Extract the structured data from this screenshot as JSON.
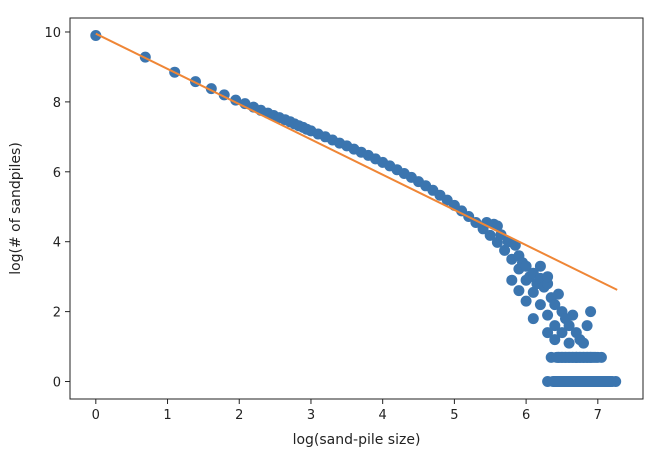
{
  "chart_data": {
    "type": "scatter",
    "title": "",
    "xlabel": "log(sand-pile size)",
    "ylabel": "log(# of sandpiles)",
    "xlim": [
      -0.36,
      7.63
    ],
    "ylim": [
      -0.5,
      10.4
    ],
    "xticks": [
      0,
      1,
      2,
      3,
      4,
      5,
      6,
      7
    ],
    "yticks": [
      0,
      2,
      4,
      6,
      8,
      10
    ],
    "grid": false,
    "legend": "none",
    "colors": {
      "scatter": "#3b75af",
      "fit": "#ef8636"
    },
    "series": [
      {
        "kind": "scatter",
        "points": [
          [
            0,
            9.9
          ],
          [
            0.69,
            9.28
          ],
          [
            1.1,
            8.85
          ],
          [
            1.39,
            8.58
          ],
          [
            1.61,
            8.38
          ],
          [
            1.79,
            8.2
          ],
          [
            1.95,
            8.05
          ],
          [
            2.08,
            7.95
          ],
          [
            2.2,
            7.85
          ],
          [
            2.3,
            7.76
          ],
          [
            2.4,
            7.68
          ],
          [
            2.48,
            7.61
          ],
          [
            2.56,
            7.55
          ],
          [
            2.64,
            7.49
          ],
          [
            2.71,
            7.43
          ],
          [
            2.77,
            7.37
          ],
          [
            2.83,
            7.32
          ],
          [
            2.89,
            7.27
          ],
          [
            2.94,
            7.22
          ],
          [
            3.0,
            7.17
          ],
          [
            3.1,
            7.08
          ],
          [
            3.2,
            7.0
          ],
          [
            3.3,
            6.91
          ],
          [
            3.4,
            6.82
          ],
          [
            3.5,
            6.74
          ],
          [
            3.6,
            6.65
          ],
          [
            3.7,
            6.56
          ],
          [
            3.8,
            6.47
          ],
          [
            3.9,
            6.37
          ],
          [
            4.0,
            6.27
          ],
          [
            4.1,
            6.17
          ],
          [
            4.2,
            6.06
          ],
          [
            4.3,
            5.95
          ],
          [
            4.4,
            5.84
          ],
          [
            4.5,
            5.72
          ],
          [
            4.6,
            5.6
          ],
          [
            4.7,
            5.47
          ],
          [
            4.8,
            5.33
          ],
          [
            4.9,
            5.19
          ],
          [
            5.0,
            5.04
          ],
          [
            5.1,
            4.88
          ],
          [
            5.2,
            4.72
          ],
          [
            5.3,
            4.55
          ],
          [
            5.4,
            4.37
          ],
          [
            5.5,
            4.18
          ],
          [
            5.6,
            3.98
          ],
          [
            5.7,
            3.75
          ],
          [
            5.8,
            3.5
          ],
          [
            5.9,
            3.22
          ],
          [
            6.0,
            2.9
          ],
          [
            6.1,
            2.55
          ],
          [
            6.2,
            2.2
          ],
          [
            6.3,
            1.9
          ],
          [
            6.4,
            1.6
          ],
          [
            6.5,
            1.4
          ],
          [
            6.6,
            1.1
          ],
          [
            6.7,
            0.69
          ],
          [
            5.45,
            4.55
          ],
          [
            5.55,
            4.5
          ],
          [
            5.6,
            4.45
          ],
          [
            5.65,
            4.2
          ],
          [
            5.75,
            4.0
          ],
          [
            5.85,
            3.9
          ],
          [
            5.9,
            3.6
          ],
          [
            5.95,
            3.4
          ],
          [
            6.0,
            3.3
          ],
          [
            6.05,
            3.0
          ],
          [
            6.1,
            3.1
          ],
          [
            6.15,
            2.8
          ],
          [
            6.2,
            2.95
          ],
          [
            6.25,
            2.7
          ],
          [
            6.3,
            2.8
          ],
          [
            6.35,
            2.4
          ],
          [
            6.4,
            2.2
          ],
          [
            6.45,
            2.5
          ],
          [
            6.5,
            2.0
          ],
          [
            6.55,
            1.8
          ],
          [
            6.6,
            1.6
          ],
          [
            6.65,
            1.9
          ],
          [
            6.7,
            1.4
          ],
          [
            6.75,
            1.2
          ],
          [
            6.8,
            1.1
          ],
          [
            6.9,
            2.0
          ],
          [
            6.85,
            1.6
          ],
          [
            6.3,
            3.0
          ],
          [
            6.2,
            3.3
          ],
          [
            6.0,
            2.3
          ],
          [
            5.9,
            2.6
          ],
          [
            5.8,
            2.9
          ],
          [
            6.1,
            1.8
          ],
          [
            6.3,
            1.4
          ],
          [
            6.4,
            1.2
          ],
          [
            6.5,
            0.69
          ],
          [
            6.6,
            0.69
          ],
          [
            6.7,
            0.69
          ],
          [
            6.8,
            0.69
          ],
          [
            6.9,
            0.69
          ],
          [
            6.35,
            0.69
          ],
          [
            6.45,
            0.69
          ],
          [
            6.55,
            0.69
          ],
          [
            6.65,
            0.69
          ],
          [
            6.75,
            0.69
          ],
          [
            6.85,
            0.69
          ],
          [
            7.0,
            0.69
          ],
          [
            7.05,
            0.69
          ],
          [
            6.3,
            0
          ],
          [
            6.5,
            0
          ],
          [
            6.6,
            0
          ],
          [
            6.7,
            0
          ],
          [
            6.8,
            0
          ],
          [
            6.9,
            0
          ],
          [
            7.0,
            0
          ],
          [
            7.1,
            0
          ],
          [
            7.2,
            0
          ],
          [
            7.25,
            0
          ],
          [
            6.55,
            0
          ],
          [
            6.65,
            0
          ],
          [
            6.75,
            0
          ],
          [
            6.85,
            0
          ],
          [
            6.95,
            0
          ],
          [
            7.05,
            0
          ],
          [
            7.15,
            0
          ]
        ]
      },
      {
        "kind": "line",
        "points": [
          [
            0,
            9.95
          ],
          [
            7.27,
            2.62
          ]
        ]
      }
    ]
  }
}
